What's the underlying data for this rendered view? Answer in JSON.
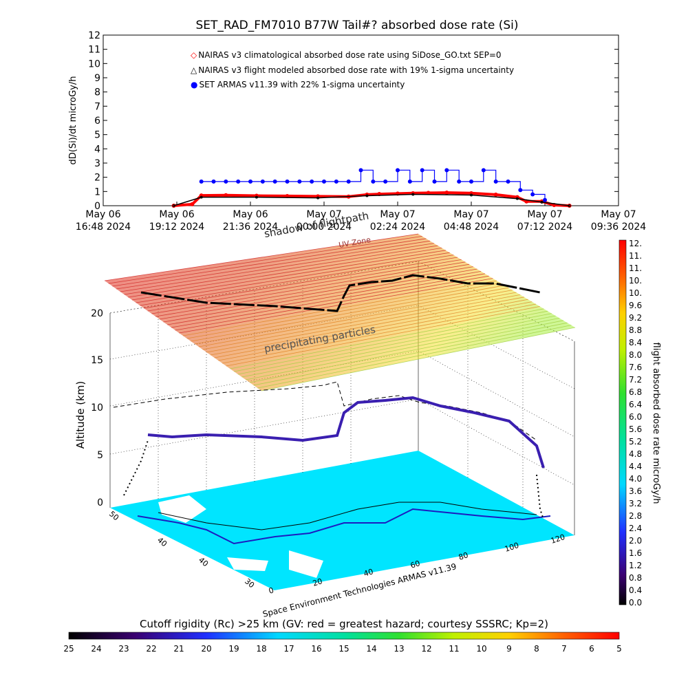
{
  "title": "SET_RAD_FM7010   B77W Tail#? absorbed dose rate (Si)",
  "legend": [
    {
      "symbol": "◇",
      "text": "NAIRAS v3 climatological absorbed dose rate using SiDose_GO.txt SEP=0",
      "color": "#ff0000"
    },
    {
      "symbol": "△",
      "text": "NAIRAS v3 flight modeled absorbed dose rate with 19% 1-sigma uncertainty",
      "color": "#000000"
    },
    {
      "symbol": "●",
      "text": "SET ARMAS v11.39 with 22% 1-sigma uncertainty",
      "color": "#0000ff"
    }
  ],
  "colorbar_right_ticks": [
    "12.",
    "11.",
    "11.",
    "10.",
    "10.",
    "9.6",
    "9.2",
    "8.8",
    "8.4",
    "8.0",
    "7.6",
    "7.2",
    "6.8",
    "6.4",
    "6.0",
    "5.6",
    "5.2",
    "4.8",
    "4.4",
    "4.0",
    "3.6",
    "3.2",
    "2.8",
    "2.4",
    "2.0",
    "1.6",
    "1.2",
    "0.8",
    "0.4",
    "0.0"
  ],
  "colorbar_right_label": "flight absorbed dose rate microGy/h",
  "colorbar_bottom_label": "Cutoff rigidity (Rc) >25 km (GV: red = greatest hazard; courtesy SSSRC; Kp=2)",
  "colorbar_bottom_ticks": [
    "25",
    "24",
    "23",
    "22",
    "21",
    "20",
    "19",
    "18",
    "17",
    "16",
    "15",
    "14",
    "13",
    "12",
    "11",
    "10",
    "9",
    "8",
    "7",
    "6",
    "5"
  ],
  "panel3d": {
    "ylabel": "Altitude (km)",
    "z_ticks": [
      "0",
      "5",
      "10",
      "15",
      "20"
    ],
    "lat_ticks": [
      "50",
      "40",
      "40",
      "30"
    ],
    "lon_ticks": [
      "0",
      "20",
      "40",
      "60",
      "80",
      "100",
      "120"
    ],
    "label_precip": "precipitating particles",
    "label_shadow": "shadow of flightpath",
    "label_uvzone": "UV Zone"
  },
  "credit": "Space Environment Technologies ARMAS v11.39",
  "chart_data": {
    "type": "line",
    "title": "SET_RAD_FM7010   B77W Tail#? absorbed dose rate (Si)",
    "ylabel": "dD(Si)/dt microGy/h",
    "xlabel": "",
    "ylim": [
      0,
      12
    ],
    "y_ticks": [
      "0",
      "1",
      "2",
      "3",
      "4",
      "5",
      "6",
      "7",
      "8",
      "9",
      "10",
      "11",
      "12"
    ],
    "x_ticks": [
      {
        "line1": "May 06",
        "line2": "16:48 2024"
      },
      {
        "line1": "May 06",
        "line2": "19:12 2024"
      },
      {
        "line1": "May 06",
        "line2": "21:36 2024"
      },
      {
        "line1": "May 07",
        "line2": "00:00 2024"
      },
      {
        "line1": "May 07",
        "line2": "02:24 2024"
      },
      {
        "line1": "May 07",
        "line2": "04:48 2024"
      },
      {
        "line1": "May 07",
        "line2": "07:12 2024"
      },
      {
        "line1": "May 07",
        "line2": "09:36 2024"
      }
    ],
    "xlim_hours": [
      0,
      16.8
    ],
    "series": [
      {
        "name": "NAIRAS v3 climatological absorbed dose rate using SiDose_GO.txt SEP=0",
        "color": "#ff0000",
        "x_hours": [
          2.3,
          2.9,
          3.2,
          4,
          5,
          6,
          7,
          8,
          8.6,
          9,
          9.6,
          10.1,
          10.6,
          11.2,
          12,
          12.8,
          13.5,
          13.8,
          14.3,
          14.7,
          15.2
        ],
        "values": [
          0.0,
          0.1,
          0.72,
          0.74,
          0.7,
          0.68,
          0.66,
          0.64,
          0.78,
          0.82,
          0.85,
          0.88,
          0.9,
          0.92,
          0.88,
          0.78,
          0.6,
          0.3,
          0.3,
          0.05,
          0.0
        ]
      },
      {
        "name": "NAIRAS v3 flight modeled absorbed dose rate with 19% 1-sigma uncertainty",
        "color": "#000000",
        "x_hours": [
          2.3,
          3.2,
          5,
          7,
          8.6,
          10.1,
          12,
          13.5,
          14.3,
          15.2
        ],
        "values": [
          0.0,
          0.6,
          0.6,
          0.55,
          0.7,
          0.8,
          0.75,
          0.5,
          0.25,
          0.0
        ]
      },
      {
        "name": "SET ARMAS v11.39 with 22% 1-sigma uncertainty",
        "color": "#0000ff",
        "x_hours": [
          3.2,
          3.6,
          4,
          4.4,
          4.8,
          5.2,
          5.6,
          6,
          6.4,
          6.8,
          7.2,
          7.6,
          8,
          8.4,
          8.8,
          9.2,
          9.6,
          10,
          10.4,
          10.8,
          11.2,
          11.6,
          12,
          12.4,
          12.8,
          13.2,
          13.6,
          14,
          14.4
        ],
        "values": [
          1.7,
          1.7,
          1.7,
          1.7,
          1.7,
          1.7,
          1.7,
          1.7,
          1.7,
          1.7,
          1.7,
          1.7,
          1.7,
          2.5,
          1.7,
          1.7,
          2.5,
          1.7,
          2.5,
          1.7,
          2.5,
          1.7,
          1.7,
          2.5,
          1.7,
          1.7,
          1.1,
          0.8,
          0.4
        ]
      }
    ]
  }
}
